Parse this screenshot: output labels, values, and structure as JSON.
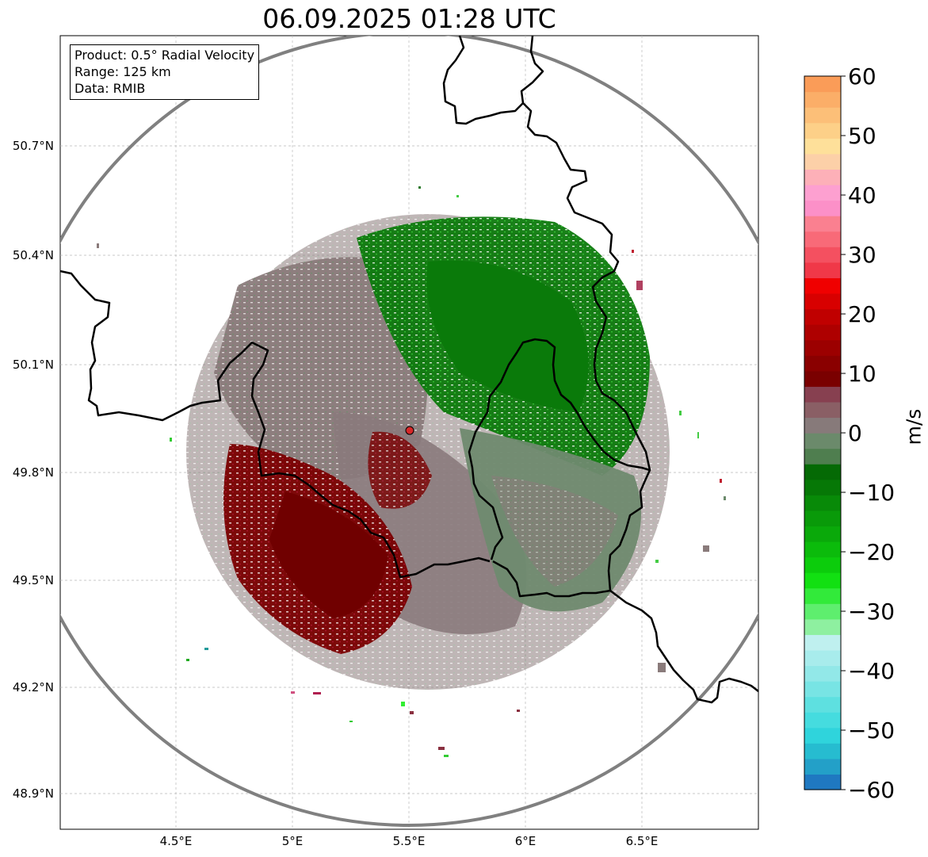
{
  "title": "06.09.2025 01:28 UTC",
  "info_box": {
    "product": "Product: 0.5° Radial Velocity",
    "range": "Range: 125 km",
    "data": "Data: RMIB"
  },
  "latitude_labels": [
    "50.7°N",
    "50.4°N",
    "50.1°N",
    "49.8°N",
    "49.5°N",
    "49.2°N",
    "48.9°N"
  ],
  "longitude_labels": [
    "4.5°E",
    "5°E",
    "5.5°E",
    "6°E",
    "6.5°E"
  ],
  "colorbar": {
    "unit": "m/s",
    "ticks": [
      "60",
      "50",
      "40",
      "30",
      "20",
      "10",
      "0",
      "−10",
      "−20",
      "−30",
      "−40",
      "−50",
      "−60"
    ],
    "range": [
      -60,
      60
    ]
  },
  "radar_site_color": "#d62728",
  "range_ring_color": "#808080",
  "border_color": "#000000"
}
